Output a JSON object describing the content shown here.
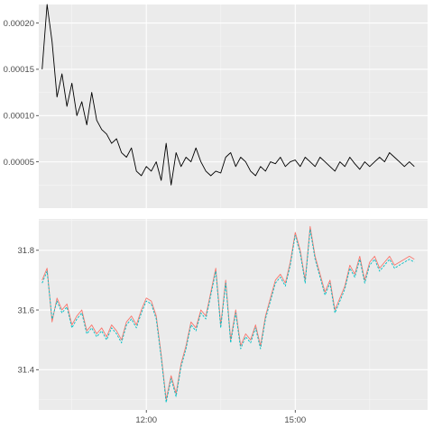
{
  "colors": {
    "panel_bg": "#EBEBEB",
    "grid_major": "#FFFFFF",
    "grid_minor": "#F5F5F5",
    "tick_text": "#4D4D4D",
    "top_line": "#000000",
    "series_red": "#F8766D",
    "series_cyan": "#00BFC4"
  },
  "chart_data": [
    {
      "type": "line",
      "title": "",
      "xlabel": "",
      "ylabel": "",
      "ylim": [
        0.0,
        0.00022
      ],
      "yticks": [
        5e-05,
        0.0001,
        0.00015,
        0.0002
      ],
      "yticklabels": [
        "0.00005",
        "0.00010",
        "0.00015",
        "0.00020"
      ],
      "xlim": [
        "09:50",
        "17:40"
      ],
      "grid": true,
      "series": [
        {
          "color": "#000000",
          "x": [
            "09:54",
            "10:00",
            "10:06",
            "10:12",
            "10:18",
            "10:24",
            "10:30",
            "10:36",
            "10:42",
            "10:48",
            "10:54",
            "11:00",
            "11:06",
            "11:12",
            "11:18",
            "11:24",
            "11:30",
            "11:36",
            "11:42",
            "11:48",
            "11:54",
            "12:00",
            "12:06",
            "12:12",
            "12:18",
            "12:24",
            "12:30",
            "12:36",
            "12:42",
            "12:48",
            "12:54",
            "13:00",
            "13:06",
            "13:12",
            "13:18",
            "13:24",
            "13:30",
            "13:36",
            "13:42",
            "13:48",
            "13:54",
            "14:00",
            "14:06",
            "14:12",
            "14:18",
            "14:24",
            "14:30",
            "14:36",
            "14:42",
            "14:48",
            "14:54",
            "15:00",
            "15:06",
            "15:12",
            "15:18",
            "15:24",
            "15:30",
            "15:36",
            "15:42",
            "15:48",
            "15:54",
            "16:00",
            "16:06",
            "16:12",
            "16:18",
            "16:24",
            "16:30",
            "16:36",
            "16:42",
            "16:48",
            "16:54",
            "17:00",
            "17:06",
            "17:12",
            "17:18",
            "17:24"
          ],
          "y": [
            0.00015,
            0.00022,
            0.00018,
            0.00012,
            0.000145,
            0.00011,
            0.000135,
            0.0001,
            0.000115,
            9e-05,
            0.000125,
            9.5e-05,
            8.5e-05,
            8e-05,
            7e-05,
            7.5e-05,
            6e-05,
            5.5e-05,
            6.5e-05,
            4e-05,
            3.5e-05,
            4.5e-05,
            4e-05,
            5e-05,
            3e-05,
            7e-05,
            2.5e-05,
            6e-05,
            4.5e-05,
            5.5e-05,
            5e-05,
            6.5e-05,
            5e-05,
            4e-05,
            3.5e-05,
            4e-05,
            3.8e-05,
            5.5e-05,
            6e-05,
            4.5e-05,
            5.5e-05,
            5e-05,
            4e-05,
            3.5e-05,
            4.5e-05,
            4e-05,
            5e-05,
            4.8e-05,
            5.5e-05,
            4.5e-05,
            5e-05,
            5.2e-05,
            4.5e-05,
            5.5e-05,
            5e-05,
            4.5e-05,
            5.5e-05,
            5e-05,
            4.5e-05,
            4e-05,
            5e-05,
            4.5e-05,
            5.5e-05,
            4.8e-05,
            4.2e-05,
            5e-05,
            4.5e-05,
            5e-05,
            5.5e-05,
            5e-05,
            6e-05,
            5.5e-05,
            5e-05,
            4.5e-05,
            5e-05,
            4.5e-05
          ]
        }
      ]
    },
    {
      "type": "line",
      "title": "",
      "xlabel": "",
      "ylabel": "",
      "ylim": [
        31.265,
        31.905
      ],
      "yticks": [
        31.4,
        31.6,
        31.8
      ],
      "yticklabels": [
        "31.4",
        "31.6",
        "31.8"
      ],
      "xlim": [
        "09:50",
        "17:40"
      ],
      "xticks": [
        "12:00",
        "15:00"
      ],
      "xticklabels": [
        "12:00",
        "15:00"
      ],
      "grid": true,
      "series": [
        {
          "color": "#F8766D",
          "x": [
            "09:54",
            "10:00",
            "10:06",
            "10:12",
            "10:18",
            "10:24",
            "10:30",
            "10:36",
            "10:42",
            "10:48",
            "10:54",
            "11:00",
            "11:06",
            "11:12",
            "11:18",
            "11:24",
            "11:30",
            "11:36",
            "11:42",
            "11:48",
            "11:54",
            "12:00",
            "12:06",
            "12:12",
            "12:18",
            "12:24",
            "12:30",
            "12:36",
            "12:42",
            "12:48",
            "12:54",
            "13:00",
            "13:06",
            "13:12",
            "13:18",
            "13:24",
            "13:30",
            "13:36",
            "13:42",
            "13:48",
            "13:54",
            "14:00",
            "14:06",
            "14:12",
            "14:18",
            "14:24",
            "14:30",
            "14:36",
            "14:42",
            "14:48",
            "14:54",
            "15:00",
            "15:06",
            "15:12",
            "15:18",
            "15:24",
            "15:30",
            "15:36",
            "15:42",
            "15:48",
            "15:54",
            "16:00",
            "16:06",
            "16:12",
            "16:18",
            "16:24",
            "16:30",
            "16:36",
            "16:42",
            "16:48",
            "16:54",
            "17:00",
            "17:06",
            "17:12",
            "17:18",
            "17:24"
          ],
          "y": [
            31.7,
            31.74,
            31.56,
            31.64,
            31.6,
            31.62,
            31.55,
            31.58,
            31.6,
            31.53,
            31.55,
            31.52,
            31.54,
            31.51,
            31.55,
            31.53,
            31.5,
            31.56,
            31.58,
            31.55,
            31.6,
            31.64,
            31.63,
            31.58,
            31.45,
            31.3,
            31.38,
            31.32,
            31.42,
            31.48,
            31.56,
            31.54,
            31.6,
            31.58,
            31.66,
            31.74,
            31.55,
            31.7,
            31.5,
            31.6,
            31.48,
            31.52,
            31.5,
            31.55,
            31.48,
            31.58,
            31.64,
            31.7,
            31.72,
            31.69,
            31.76,
            31.86,
            31.8,
            31.7,
            31.88,
            31.78,
            31.72,
            31.66,
            31.7,
            31.6,
            31.64,
            31.68,
            31.75,
            31.72,
            31.78,
            31.7,
            31.76,
            31.78,
            31.74,
            31.76,
            31.78,
            31.75,
            31.76,
            31.77,
            31.78,
            31.77
          ]
        },
        {
          "color": "#00BFC4",
          "x": [
            "09:54",
            "10:00",
            "10:06",
            "10:12",
            "10:18",
            "10:24",
            "10:30",
            "10:36",
            "10:42",
            "10:48",
            "10:54",
            "11:00",
            "11:06",
            "11:12",
            "11:18",
            "11:24",
            "11:30",
            "11:36",
            "11:42",
            "11:48",
            "11:54",
            "12:00",
            "12:06",
            "12:12",
            "12:18",
            "12:24",
            "12:30",
            "12:36",
            "12:42",
            "12:48",
            "12:54",
            "13:00",
            "13:06",
            "13:12",
            "13:18",
            "13:24",
            "13:30",
            "13:36",
            "13:42",
            "13:48",
            "13:54",
            "14:00",
            "14:06",
            "14:12",
            "14:18",
            "14:24",
            "14:30",
            "14:36",
            "14:42",
            "14:48",
            "14:54",
            "15:00",
            "15:06",
            "15:12",
            "15:18",
            "15:24",
            "15:30",
            "15:36",
            "15:42",
            "15:48",
            "15:54",
            "16:00",
            "16:06",
            "16:12",
            "16:18",
            "16:24",
            "16:30",
            "16:36",
            "16:42",
            "16:48",
            "16:54",
            "17:00",
            "17:06",
            "17:12",
            "17:18",
            "17:24"
          ],
          "y": [
            31.69,
            31.73,
            31.57,
            31.63,
            31.59,
            31.61,
            31.54,
            31.57,
            31.59,
            31.52,
            31.54,
            31.51,
            31.53,
            31.5,
            31.54,
            31.52,
            31.49,
            31.55,
            31.57,
            31.54,
            31.59,
            31.63,
            31.62,
            31.57,
            31.44,
            31.29,
            31.37,
            31.31,
            31.41,
            31.47,
            31.55,
            31.53,
            31.59,
            31.57,
            31.65,
            31.73,
            31.54,
            31.69,
            31.49,
            31.59,
            31.47,
            31.51,
            31.49,
            31.54,
            31.47,
            31.57,
            31.63,
            31.69,
            31.71,
            31.68,
            31.75,
            31.85,
            31.79,
            31.69,
            31.87,
            31.77,
            31.71,
            31.65,
            31.69,
            31.59,
            31.63,
            31.67,
            31.74,
            31.71,
            31.77,
            31.69,
            31.75,
            31.77,
            31.73,
            31.75,
            31.77,
            31.74,
            31.75,
            31.76,
            31.77,
            31.76
          ]
        }
      ]
    }
  ]
}
